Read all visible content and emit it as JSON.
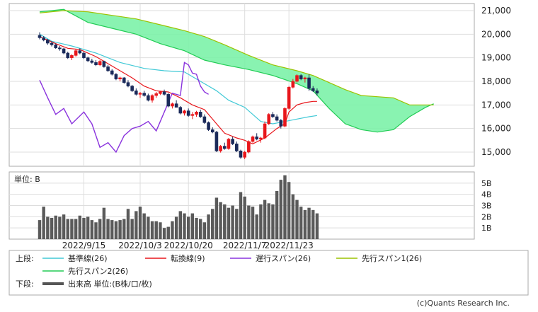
{
  "chart_data": [
    {
      "type": "candlestick",
      "panel": "price",
      "ylim": [
        14400,
        21300
      ],
      "yticks": [
        "21,000",
        "20,000",
        "19,000",
        "18,000",
        "17,000",
        "16,000",
        "15,000"
      ],
      "ytick_values": [
        21000,
        20000,
        19000,
        18000,
        17000,
        16000,
        15000
      ],
      "colors": {
        "up": "#e8161b",
        "down": "#1b2a5a",
        "kijun": "#41c9d6",
        "tenkan": "#e8161b",
        "chikou": "#8a33dd",
        "span1": "#9bc200",
        "span2": "#22cc55",
        "cloud": "#7cf2a8"
      },
      "candles": [
        [
          19950,
          20080,
          19780,
          19850
        ],
        [
          19850,
          19920,
          19700,
          19750
        ],
        [
          19750,
          19800,
          19550,
          19620
        ],
        [
          19620,
          19700,
          19480,
          19550
        ],
        [
          19550,
          19600,
          19380,
          19420
        ],
        [
          19420,
          19500,
          19300,
          19380
        ],
        [
          19380,
          19420,
          19150,
          19200
        ],
        [
          19200,
          19260,
          18950,
          19000
        ],
        [
          19000,
          19150,
          18900,
          19100
        ],
        [
          19100,
          19350,
          19050,
          19300
        ],
        [
          19300,
          19400,
          19150,
          19200
        ],
        [
          19200,
          19250,
          18950,
          19000
        ],
        [
          19000,
          19050,
          18820,
          18870
        ],
        [
          18870,
          18960,
          18750,
          18800
        ],
        [
          18800,
          18900,
          18650,
          18700
        ],
        [
          18700,
          18900,
          18650,
          18850
        ],
        [
          18850,
          18880,
          18580,
          18620
        ],
        [
          18620,
          18700,
          18400,
          18450
        ],
        [
          18450,
          18520,
          18250,
          18300
        ],
        [
          18300,
          18350,
          18050,
          18100
        ],
        [
          18100,
          18200,
          18000,
          18150
        ],
        [
          18150,
          18180,
          17900,
          17950
        ],
        [
          17950,
          18050,
          17750,
          17800
        ],
        [
          17800,
          17850,
          17550,
          17600
        ],
        [
          17600,
          17700,
          17400,
          17450
        ],
        [
          17450,
          17550,
          17300,
          17500
        ],
        [
          17500,
          17600,
          17350,
          17400
        ],
        [
          17400,
          17480,
          17150,
          17200
        ],
        [
          17200,
          17450,
          17100,
          17400
        ],
        [
          17400,
          17550,
          17300,
          17480
        ],
        [
          17480,
          17600,
          17420,
          17560
        ],
        [
          17560,
          17650,
          17400,
          17450
        ],
        [
          17450,
          17500,
          16900,
          16950
        ],
        [
          16950,
          17100,
          16850,
          17050
        ],
        [
          17050,
          17200,
          16950,
          16900
        ],
        [
          16900,
          16950,
          16600,
          16650
        ],
        [
          16650,
          16800,
          16550,
          16750
        ],
        [
          16750,
          16850,
          16500,
          16550
        ],
        [
          16550,
          16700,
          16400,
          16600
        ],
        [
          16600,
          16750,
          16500,
          16700
        ],
        [
          16700,
          16800,
          16450,
          16500
        ],
        [
          16500,
          16600,
          16200,
          16250
        ],
        [
          16250,
          16300,
          15900,
          15950
        ],
        [
          15950,
          16050,
          15800,
          15850
        ],
        [
          15850,
          15900,
          15000,
          15050
        ],
        [
          15050,
          15300,
          14980,
          15250
        ],
        [
          15250,
          15400,
          15100,
          15150
        ],
        [
          15150,
          15600,
          15100,
          15550
        ],
        [
          15550,
          15650,
          15300,
          15350
        ],
        [
          15350,
          15450,
          15000,
          15050
        ],
        [
          15050,
          15100,
          14720,
          14780
        ],
        [
          14780,
          15050,
          14700,
          15000
        ],
        [
          15000,
          15500,
          14950,
          15450
        ],
        [
          15450,
          15700,
          15400,
          15650
        ],
        [
          15650,
          15800,
          15500,
          15550
        ],
        [
          15550,
          15650,
          15400,
          15600
        ],
        [
          15600,
          16300,
          15550,
          16200
        ],
        [
          16200,
          16650,
          16150,
          16600
        ],
        [
          16600,
          16700,
          16450,
          16500
        ],
        [
          16500,
          16600,
          16300,
          16350
        ],
        [
          16350,
          16400,
          16000,
          16100
        ],
        [
          16100,
          16900,
          16050,
          16850
        ],
        [
          16850,
          17800,
          16800,
          17750
        ],
        [
          17750,
          18100,
          17700,
          18000
        ],
        [
          18000,
          18300,
          17950,
          18250
        ],
        [
          18250,
          18300,
          18050,
          18100
        ],
        [
          18100,
          18200,
          17950,
          18150
        ],
        [
          18150,
          18300,
          17600,
          17700
        ],
        [
          17700,
          17800,
          17550,
          17600
        ],
        [
          17600,
          17700,
          17400,
          17500
        ]
      ],
      "kijun": [
        [
          0,
          20000
        ],
        [
          3,
          19700
        ],
        [
          8,
          19500
        ],
        [
          14,
          19200
        ],
        [
          20,
          18800
        ],
        [
          26,
          18550
        ],
        [
          31,
          18450
        ],
        [
          36,
          18400
        ],
        [
          40,
          18000
        ],
        [
          44,
          17600
        ],
        [
          47,
          17200
        ],
        [
          51,
          16900
        ],
        [
          55,
          16300
        ],
        [
          58,
          16200
        ],
        [
          61,
          16300
        ],
        [
          64,
          16400
        ],
        [
          67,
          16500
        ],
        [
          69,
          16550
        ]
      ],
      "tenkan": [
        [
          0,
          19900
        ],
        [
          4,
          19600
        ],
        [
          7,
          19400
        ],
        [
          10,
          19350
        ],
        [
          14,
          19050
        ],
        [
          17,
          18750
        ],
        [
          20,
          18450
        ],
        [
          23,
          18150
        ],
        [
          26,
          17800
        ],
        [
          29,
          17600
        ],
        [
          32,
          17550
        ],
        [
          35,
          17300
        ],
        [
          38,
          17000
        ],
        [
          41,
          16800
        ],
        [
          44,
          16200
        ],
        [
          46,
          15800
        ],
        [
          49,
          15600
        ],
        [
          51,
          15500
        ],
        [
          53,
          15350
        ],
        [
          56,
          15600
        ],
        [
          59,
          16000
        ],
        [
          61,
          16200
        ],
        [
          62,
          16700
        ],
        [
          64,
          17000
        ],
        [
          66,
          17100
        ],
        [
          68,
          17150
        ],
        [
          69,
          17150
        ]
      ],
      "chikou": [
        [
          0,
          18050
        ],
        [
          2,
          17300
        ],
        [
          4,
          16600
        ],
        [
          6,
          16850
        ],
        [
          8,
          16200
        ],
        [
          11,
          16700
        ],
        [
          13,
          16200
        ],
        [
          15,
          15200
        ],
        [
          17,
          15400
        ],
        [
          19,
          15000
        ],
        [
          21,
          15700
        ],
        [
          23,
          16000
        ],
        [
          25,
          16100
        ],
        [
          27,
          16300
        ],
        [
          29,
          15900
        ],
        [
          31,
          16700
        ],
        [
          33,
          17500
        ],
        [
          35,
          17400
        ],
        [
          36,
          18800
        ],
        [
          37,
          18700
        ],
        [
          38,
          18350
        ],
        [
          39,
          18300
        ],
        [
          40,
          17800
        ],
        [
          41,
          17550
        ],
        [
          42,
          17450
        ]
      ],
      "span1": [
        [
          0,
          20900
        ],
        [
          6,
          21000
        ],
        [
          12,
          20950
        ],
        [
          18,
          20800
        ],
        [
          24,
          20650
        ],
        [
          30,
          20400
        ],
        [
          36,
          20150
        ],
        [
          41,
          19900
        ],
        [
          46,
          19550
        ],
        [
          52,
          19100
        ],
        [
          58,
          18700
        ],
        [
          64,
          18450
        ],
        [
          68,
          18250
        ],
        [
          72,
          17950
        ],
        [
          76,
          17650
        ],
        [
          80,
          17400
        ],
        [
          84,
          17350
        ],
        [
          88,
          17300
        ],
        [
          92,
          17000
        ],
        [
          96,
          17000
        ],
        [
          98,
          17000
        ]
      ],
      "span2": [
        [
          0,
          20950
        ],
        [
          6,
          21050
        ],
        [
          12,
          20500
        ],
        [
          18,
          20250
        ],
        [
          24,
          20000
        ],
        [
          30,
          19600
        ],
        [
          36,
          19300
        ],
        [
          41,
          18900
        ],
        [
          46,
          18700
        ],
        [
          52,
          18500
        ],
        [
          58,
          18250
        ],
        [
          64,
          17900
        ],
        [
          68,
          17600
        ],
        [
          72,
          16850
        ],
        [
          76,
          16200
        ],
        [
          80,
          15950
        ],
        [
          84,
          15850
        ],
        [
          88,
          15950
        ],
        [
          92,
          16500
        ],
        [
          96,
          16900
        ],
        [
          98,
          17050
        ]
      ]
    },
    {
      "type": "bar",
      "panel": "volume",
      "unit_label": "単位: B",
      "ylim": [
        0,
        6
      ],
      "yticks": [
        "5B",
        "4B",
        "3B",
        "2B",
        "1B"
      ],
      "ytick_values": [
        5,
        4,
        3,
        2,
        1
      ],
      "values": [
        1.7,
        2.9,
        2.0,
        1.9,
        2.1,
        2.0,
        2.2,
        1.8,
        1.8,
        1.8,
        2.1,
        1.9,
        2.0,
        1.7,
        1.5,
        1.8,
        2.8,
        1.8,
        1.7,
        1.6,
        1.7,
        1.8,
        2.7,
        1.8,
        2.5,
        2.9,
        2.3,
        2.0,
        1.6,
        1.6,
        1.5,
        1.0,
        1.1,
        1.6,
        2.0,
        2.5,
        2.3,
        2.0,
        2.3,
        1.9,
        1.8,
        1.5,
        2.2,
        2.7,
        3.7,
        3.3,
        3.1,
        2.8,
        3.0,
        2.7,
        4.2,
        3.8,
        3.0,
        2.9,
        2.2,
        3.1,
        3.5,
        3.2,
        3.1,
        4.3,
        5.3,
        5.7,
        5.1,
        4.0,
        3.5,
        2.9,
        2.6,
        2.8,
        2.6,
        2.3
      ],
      "color": "#5a5a5a",
      "xticks": [
        "2022/9/15",
        "2022/10/3",
        "2022/10/20",
        "2022/11/7",
        "2022/11/23"
      ],
      "xtick_index": [
        11,
        25,
        37,
        51,
        62
      ]
    }
  ],
  "legend": {
    "upper_label": "上段:",
    "lower_label": "下段:",
    "items": [
      {
        "label": "基準線(26)",
        "color": "#41c9d6"
      },
      {
        "label": "転換線(9)",
        "color": "#e8161b"
      },
      {
        "label": "遅行スパン(26)",
        "color": "#8a33dd"
      },
      {
        "label": "先行スパン1(26)",
        "color": "#9bc200"
      },
      {
        "label": "先行スパン2(26)",
        "color": "#22cc55"
      }
    ],
    "volume_item": {
      "label": "出来高 単位:(B株/口/枚)",
      "color": "#555555"
    }
  },
  "credit": "(c)Quants Research Inc."
}
